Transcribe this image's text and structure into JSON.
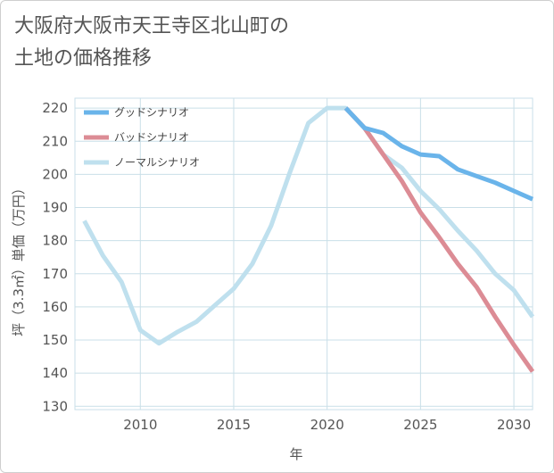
{
  "title_line1": "大阪府大阪市天王寺区北山町の",
  "title_line2": "土地の価格推移",
  "chart_data": {
    "type": "line",
    "xlabel": "年",
    "ylabel": "坪（3.3㎡）単価（万円）",
    "xlim": [
      2006.5,
      2031
    ],
    "ylim": [
      129,
      223
    ],
    "xticks": [
      2010,
      2015,
      2020,
      2025,
      2030
    ],
    "yticks": [
      130,
      140,
      150,
      160,
      170,
      180,
      190,
      200,
      210,
      220
    ],
    "grid": true,
    "legend_position": "top-left",
    "series": [
      {
        "name": "グッドシナリオ",
        "color": "#6ab4ea",
        "x": [
          2021,
          2022,
          2023,
          2024,
          2025,
          2026,
          2027,
          2028,
          2029,
          2030,
          2031
        ],
        "y": [
          220,
          214,
          212.5,
          208.5,
          206,
          205.5,
          201.5,
          199.5,
          197.5,
          195,
          192.5
        ]
      },
      {
        "name": "バッドシナリオ",
        "color": "#dc8c95",
        "x": [
          2021,
          2022,
          2023,
          2024,
          2025,
          2026,
          2027,
          2028,
          2029,
          2030,
          2031
        ],
        "y": [
          220,
          214,
          206,
          198,
          188.5,
          181,
          173,
          166,
          157,
          148.5,
          140.5
        ]
      },
      {
        "name": "ノーマルシナリオ",
        "color": "#bfe0ee",
        "x": [
          2007,
          2008,
          2009,
          2010,
          2011,
          2012,
          2013,
          2014,
          2015,
          2016,
          2017,
          2018,
          2019,
          2020,
          2021,
          2022,
          2023,
          2024,
          2025,
          2026,
          2027,
          2028,
          2029,
          2030,
          2031
        ],
        "y": [
          186,
          175.5,
          167.5,
          153,
          149,
          152.5,
          155.5,
          160.5,
          165.5,
          173,
          184.5,
          200.5,
          215.5,
          220,
          220,
          214,
          206,
          202,
          195,
          189.5,
          183,
          177,
          170,
          165,
          157
        ]
      }
    ]
  }
}
